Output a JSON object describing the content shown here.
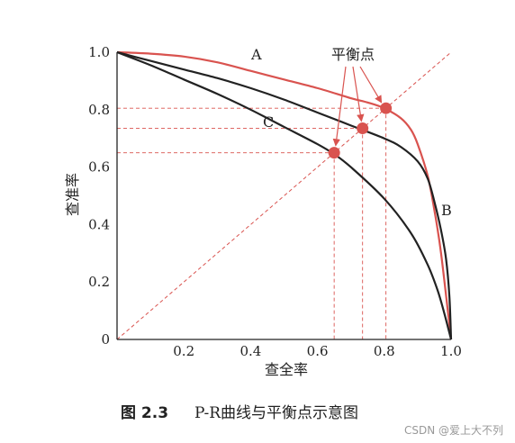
{
  "chart_data": {
    "type": "line",
    "xlabel": "查全率",
    "ylabel": "查准率",
    "xlim": [
      0,
      1.0
    ],
    "ylim": [
      0,
      1.0
    ],
    "x_ticks": [
      "0.2",
      "0.4",
      "0.6",
      "0.8",
      "1.0"
    ],
    "y_ticks": [
      "0",
      "0.2",
      "0.4",
      "0.6",
      "0.8",
      "1.0"
    ],
    "grid": false,
    "series": [
      {
        "name": "A",
        "color": "#d9534f",
        "x": [
          0.0,
          0.1,
          0.2,
          0.3,
          0.4,
          0.5,
          0.6,
          0.7,
          0.75,
          0.8,
          0.85,
          0.88,
          0.9,
          0.93,
          0.95,
          0.97,
          1.0
        ],
        "y": [
          1.0,
          0.995,
          0.985,
          0.965,
          0.935,
          0.905,
          0.875,
          0.84,
          0.825,
          0.805,
          0.77,
          0.73,
          0.68,
          0.57,
          0.45,
          0.3,
          0.0
        ]
      },
      {
        "name": "B",
        "color": "#222222",
        "x": [
          0.0,
          0.1,
          0.2,
          0.3,
          0.4,
          0.5,
          0.6,
          0.7,
          0.8,
          0.85,
          0.9,
          0.93,
          0.95,
          0.97,
          0.985,
          0.995,
          1.0
        ],
        "y": [
          1.0,
          0.97,
          0.94,
          0.91,
          0.875,
          0.835,
          0.79,
          0.745,
          0.7,
          0.67,
          0.62,
          0.56,
          0.48,
          0.38,
          0.28,
          0.15,
          0.0
        ]
      },
      {
        "name": "C",
        "color": "#222222",
        "x": [
          0.0,
          0.1,
          0.2,
          0.3,
          0.4,
          0.5,
          0.6,
          0.65,
          0.7,
          0.8,
          0.88,
          0.93,
          0.96,
          0.98,
          1.0
        ],
        "y": [
          1.0,
          0.955,
          0.905,
          0.855,
          0.8,
          0.74,
          0.68,
          0.645,
          0.6,
          0.49,
          0.37,
          0.26,
          0.17,
          0.09,
          0.0
        ]
      }
    ],
    "reference_line": {
      "x": [
        0,
        1.0
      ],
      "y": [
        0,
        1.0
      ],
      "color": "#d9534f",
      "style": "dashed"
    },
    "break_even_points": [
      {
        "x": 0.65,
        "y": 0.65,
        "curve": "C"
      },
      {
        "x": 0.735,
        "y": 0.735,
        "curve": "B"
      },
      {
        "x": 0.805,
        "y": 0.805,
        "curve": "A"
      }
    ],
    "annotations": {
      "break_even_label": "平衡点"
    },
    "point_color": "#d9534f"
  },
  "caption": {
    "prefix": "图 2.3",
    "text": "P-R曲线与平衡点示意图"
  },
  "watermark": "CSDN @爱上大不列"
}
